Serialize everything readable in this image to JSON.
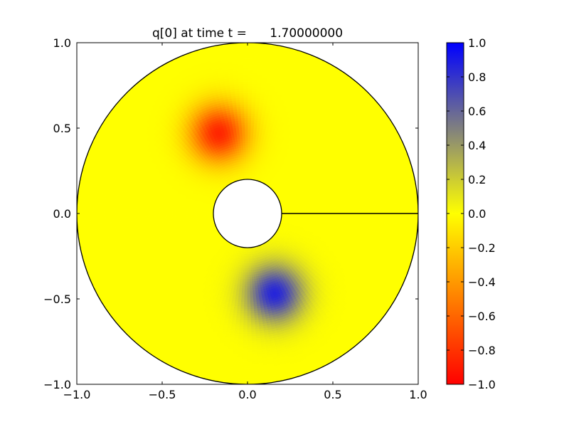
{
  "chart_data": [
    {
      "type": "heatmap",
      "subtype": "annular-domain-field",
      "title": "q[0] at time t =      1.70000000",
      "xlabel": "",
      "ylabel": "",
      "xlim": [
        -1.0,
        1.0
      ],
      "ylim": [
        -1.0,
        1.0
      ],
      "xticks": [
        {
          "value": -1.0,
          "label": "−1.0"
        },
        {
          "value": -0.5,
          "label": "−0.5"
        },
        {
          "value": 0.0,
          "label": "0.0"
        },
        {
          "value": 0.5,
          "label": "0.5"
        },
        {
          "value": 1.0,
          "label": "1.0"
        }
      ],
      "yticks": [
        {
          "value": -1.0,
          "label": "−1.0"
        },
        {
          "value": -0.5,
          "label": "−0.5"
        },
        {
          "value": 0.0,
          "label": "0.0"
        },
        {
          "value": 0.5,
          "label": "0.5"
        },
        {
          "value": 1.0,
          "label": "1.0"
        }
      ],
      "grid": false,
      "domain": {
        "outer_radius": 1.0,
        "inner_radius": 0.2,
        "seam": {
          "from": [
            0.2,
            0.0
          ],
          "to": [
            1.0,
            0.0
          ]
        }
      },
      "background_value": 0.0,
      "features": [
        {
          "kind": "minimum",
          "center": [
            -0.17,
            0.47
          ],
          "peak": -0.85,
          "spread": 0.12
        },
        {
          "kind": "maximum",
          "center": [
            0.16,
            -0.47
          ],
          "peak": 0.85,
          "spread": 0.12
        }
      ],
      "colorbar": {
        "range": [
          -1.0,
          1.0
        ],
        "colors": [
          {
            "value": -1.0,
            "color": "#ff0000"
          },
          {
            "value": 0.0,
            "color": "#ffff00"
          },
          {
            "value": 1.0,
            "color": "#0000ff"
          }
        ],
        "ticks": [
          {
            "value": 1.0,
            "label": "1.0"
          },
          {
            "value": 0.8,
            "label": "0.8"
          },
          {
            "value": 0.6,
            "label": "0.6"
          },
          {
            "value": 0.4,
            "label": "0.4"
          },
          {
            "value": 0.2,
            "label": "0.2"
          },
          {
            "value": 0.0,
            "label": "0.0"
          },
          {
            "value": -0.2,
            "label": "−0.2"
          },
          {
            "value": -0.4,
            "label": "−0.4"
          },
          {
            "value": -0.6,
            "label": "−0.6"
          },
          {
            "value": -0.8,
            "label": "−0.8"
          },
          {
            "value": -1.0,
            "label": "−1.0"
          }
        ]
      }
    }
  ]
}
